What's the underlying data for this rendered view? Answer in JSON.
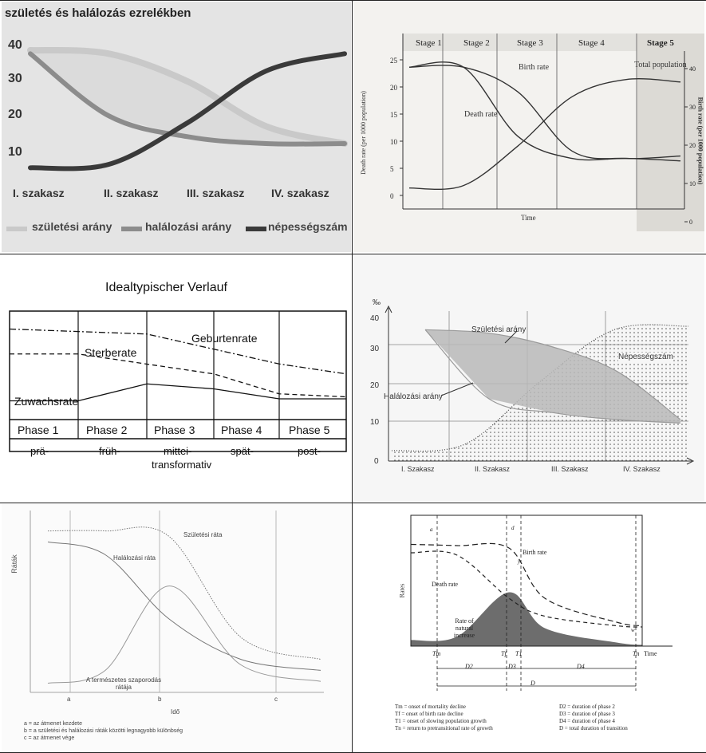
{
  "colors": {
    "birth": "#c9c9c9",
    "death": "#8c8c8c",
    "population": "#3a3a3a",
    "panel1_bg": "#e4e4e4",
    "dark_fill": "#6d6d6d"
  },
  "chart_data": [
    {
      "type": "line",
      "title": "születés és halálozás ezrelékben",
      "ytick_labels": [
        "40",
        "30",
        "20",
        "10"
      ],
      "ylim": [
        0,
        42
      ],
      "x": [
        0,
        1,
        2,
        3,
        4
      ],
      "xtick_labels": [
        "I. szakasz",
        "II. szakasz",
        "III. szakasz",
        "IV. szakasz"
      ],
      "legend_position": "bottom",
      "series": [
        {
          "name": "születési arány",
          "values": [
            39,
            38,
            30,
            17,
            12
          ]
        },
        {
          "name": "halálozási arány",
          "values": [
            38,
            20,
            14,
            12,
            12
          ]
        },
        {
          "name": "népességszám",
          "values": [
            5,
            6,
            18,
            33,
            38
          ]
        }
      ],
      "grid": false
    },
    {
      "type": "line",
      "stages": [
        "Stage 1",
        "Stage 2",
        "Stage 3",
        "Stage 4",
        "Stage 5"
      ],
      "ylabel": "Death rate (per 1000 population)",
      "y2label": "Birth rate (per 1000 population)",
      "xlabel": "Time",
      "ytick_labels": [
        "0",
        "5",
        "10",
        "15",
        "20",
        "25"
      ],
      "y2tick_labels": [
        "0",
        "10",
        "20",
        "30",
        "40"
      ],
      "ylim": [
        0,
        27
      ],
      "y2lim": [
        0,
        44
      ],
      "x": [
        0,
        1,
        2,
        3,
        4,
        5
      ],
      "annotations": [
        "Birth rate",
        "Death rate",
        "Total population"
      ],
      "series": [
        {
          "name": "Birth rate",
          "values": [
            26,
            26,
            21,
            9,
            7.5,
            8
          ]
        },
        {
          "name": "Death rate",
          "values": [
            26,
            26,
            12,
            7.5,
            7.5,
            7
          ]
        },
        {
          "name": "Total population",
          "values": [
            1.5,
            2,
            10,
            20,
            23.5,
            23
          ]
        }
      ]
    },
    {
      "type": "line",
      "title": "Idealtypischer Verlauf",
      "phases": [
        "Phase 1",
        "Phase 2",
        "Phase 3",
        "Phase 4",
        "Phase 5"
      ],
      "phase_sublabels": [
        "prä-",
        "früh-",
        "mittei-",
        "spät-",
        "post-"
      ],
      "phase_sublabel_extra": "transformativ",
      "series": [
        {
          "name": "Geburtenrate",
          "values": [
            90,
            90,
            85,
            55,
            45
          ]
        },
        {
          "name": "Sterberate",
          "values": [
            65,
            65,
            45,
            25,
            22
          ]
        },
        {
          "name": "Zuwachsrate",
          "values": [
            18,
            18,
            35,
            30,
            20
          ]
        }
      ]
    },
    {
      "type": "area",
      "yunit": "‰",
      "ytick_labels": [
        "0",
        "10",
        "20",
        "30",
        "40"
      ],
      "ylim": [
        0,
        42
      ],
      "xtick_labels": [
        "I. Szakasz",
        "II. Szakasz",
        "III. Szakasz",
        "IV. Szakasz"
      ],
      "annotations": [
        "Születési arány",
        "Halálozási arány",
        "Népességszám"
      ],
      "series": [
        {
          "name": "Születési arány",
          "values": [
            38,
            37,
            33,
            26,
            12
          ]
        },
        {
          "name": "Halálozási arány",
          "values": [
            38,
            18,
            14,
            12,
            11
          ]
        },
        {
          "name": "Népességszám",
          "values": [
            3,
            5,
            23,
            38,
            39
          ]
        }
      ]
    },
    {
      "type": "line",
      "ylabel": "Ráták",
      "xlabel": "Idő",
      "xtick_labels": [
        "a",
        "b",
        "c"
      ],
      "annotations": [
        "Születési ráta",
        "Halálozási ráta",
        "A természetes szaporodás rátája"
      ],
      "notes": [
        "a = az átmenet kezdete",
        "b = a születési és halálozási ráták közötti legnagyobb különbség",
        "c = az átmenet vége"
      ],
      "series": [
        {
          "name": "Születési ráta",
          "values": [
            88,
            88,
            85,
            30,
            18
          ]
        },
        {
          "name": "Halálozási ráta",
          "values": [
            82,
            75,
            40,
            18,
            12
          ]
        },
        {
          "name": "A természetes szaporodás rátája",
          "values": [
            5,
            12,
            58,
            15,
            6
          ]
        }
      ]
    },
    {
      "type": "area",
      "ylabel": "Rates",
      "xlabel": "Time",
      "xtick_labels": [
        "Tm",
        "Tf",
        "T1",
        "Tn"
      ],
      "point_labels": [
        "a",
        "d",
        "y",
        "w"
      ],
      "durations": [
        "D2",
        "D3",
        "D4",
        "D"
      ],
      "annotations": [
        "Birth rate",
        "Death rate",
        "Rate of natural increase"
      ],
      "legend": [
        "Tm = onset of mortality decline",
        "Tf = onset of birth rate decline",
        "T1 = onset of slowing population growth",
        "Tn = return to pretransitional rate of growth",
        "D2 = duration of phase 2",
        "D3 = duration of phase 3",
        "D4 = duration of phase 4",
        "D = total duration of transition"
      ],
      "series": [
        {
          "name": "Birth rate",
          "values": [
            85,
            84,
            82,
            40,
            20,
            17
          ]
        },
        {
          "name": "Death rate",
          "values": [
            78,
            76,
            40,
            25,
            17,
            16
          ]
        },
        {
          "name": "Rate of natural increase",
          "values": [
            5,
            8,
            45,
            15,
            3,
            1
          ]
        }
      ]
    }
  ]
}
